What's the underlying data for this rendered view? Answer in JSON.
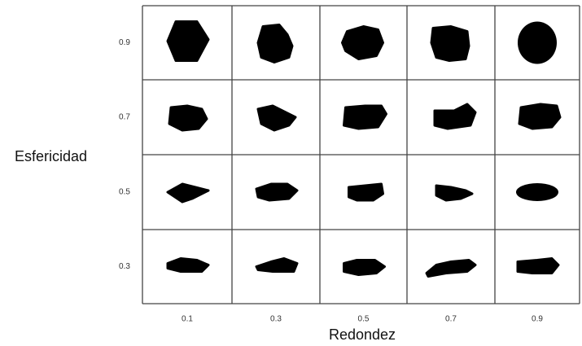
{
  "y_axis": {
    "title": "Esfericidad",
    "labels": [
      "0.9",
      "0.7",
      "0.5",
      "0.3"
    ]
  },
  "x_axis": {
    "title": "Redondez",
    "labels": [
      "0.1",
      "0.3",
      "0.5",
      "0.7",
      "0.9"
    ]
  }
}
